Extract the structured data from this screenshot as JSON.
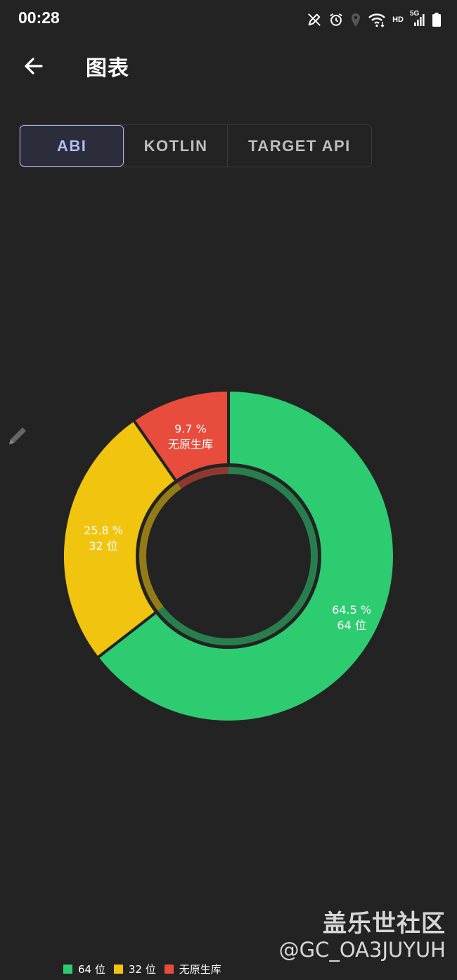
{
  "status_bar": {
    "time": "00:28",
    "network_label": "HD",
    "signal_label": "5G",
    "icons": [
      "pen-icon",
      "alarm-icon",
      "location-icon",
      "wifi-icon",
      "signal-icon",
      "battery-icon"
    ]
  },
  "app_bar": {
    "back_icon": "arrow-left-icon",
    "title": "图表"
  },
  "tabs": [
    {
      "label": "ABI",
      "active": true
    },
    {
      "label": "KOTLIN",
      "active": false
    },
    {
      "label": "TARGET API",
      "active": false
    }
  ],
  "colors": {
    "background": "#232323",
    "accent_tab": "#b3bcf2",
    "green": "#2ecc71",
    "yellow": "#f1c40f",
    "red": "#e74c3c"
  },
  "chart_data": {
    "type": "pie",
    "variant": "donut",
    "slices": [
      {
        "label": "64 位",
        "value": 64.5,
        "value_text": "64.5 %",
        "color": "#2ecc71"
      },
      {
        "label": "32 位",
        "value": 25.8,
        "value_text": "25.8 %",
        "color": "#f1c40f"
      },
      {
        "label": "无原生库",
        "value": 9.7,
        "value_text": "9.7 %",
        "color": "#e74c3c"
      }
    ],
    "legend_position": "bottom-left"
  },
  "watermark": {
    "title": "盖乐世社区",
    "user": "@GC_OA3JUYUH"
  }
}
